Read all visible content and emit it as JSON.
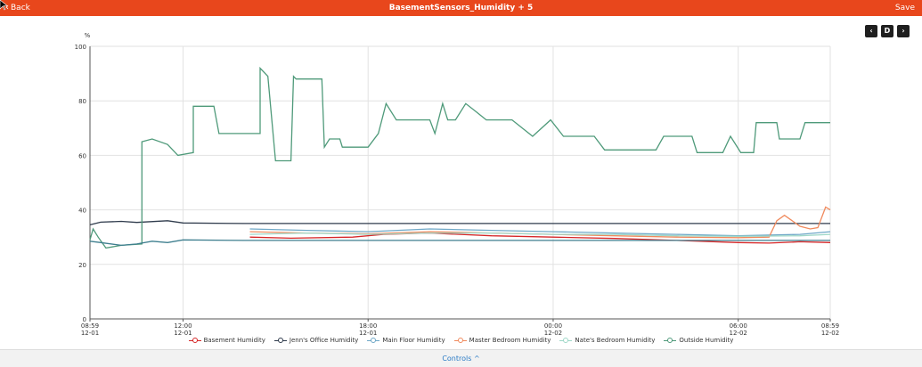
{
  "header": {
    "back_label": "Back",
    "title": "BasementSensors_Humidity + 5",
    "save_label": "Save"
  },
  "controls": {
    "prev": "‹",
    "period": "D",
    "next": "›"
  },
  "footer": {
    "controls_label": "Controls ^"
  },
  "chart_data": {
    "type": "line",
    "ylabel": "%",
    "ylim": [
      0,
      100
    ],
    "yticks": [
      "0",
      "20",
      "40",
      "60",
      "80",
      "100"
    ],
    "xlim": [
      "2023-12-01T08:59",
      "2023-12-02T08:59"
    ],
    "xticks": [
      {
        "t": "2023-12-01T08:59",
        "label1": "08:59",
        "label2": "12-01"
      },
      {
        "t": "2023-12-01T12:00",
        "label1": "12:00",
        "label2": "12-01"
      },
      {
        "t": "2023-12-01T18:00",
        "label1": "18:00",
        "label2": "12-01"
      },
      {
        "t": "2023-12-02T00:00",
        "label1": "00:00",
        "label2": "12-02"
      },
      {
        "t": "2023-12-02T06:00",
        "label1": "06:00",
        "label2": "12-02"
      },
      {
        "t": "2023-12-02T08:59",
        "label1": "08:59",
        "label2": "12-02"
      }
    ],
    "grid": true,
    "legend_position": "bottom",
    "series": [
      {
        "name": "Basement Humidity",
        "color": "#d62728",
        "points": [
          [
            "2023-12-01T14:10",
            30
          ],
          [
            "2023-12-01T15:30",
            29.6
          ],
          [
            "2023-12-01T17:30",
            30
          ],
          [
            "2023-12-01T18:30",
            31
          ],
          [
            "2023-12-01T20:00",
            31.5
          ],
          [
            "2023-12-01T22:00",
            30.5
          ],
          [
            "2023-12-02T00:00",
            30
          ],
          [
            "2023-12-02T02:00",
            29.5
          ],
          [
            "2023-12-02T04:00",
            28.8
          ],
          [
            "2023-12-02T06:00",
            28
          ],
          [
            "2023-12-02T07:00",
            27.8
          ],
          [
            "2023-12-02T08:00",
            28.3
          ],
          [
            "2023-12-02T08:59",
            28
          ]
        ]
      },
      {
        "name": "Jenn's Office Humidity",
        "color": "#2f3b4c",
        "points": [
          [
            "2023-12-01T08:59",
            34.5
          ],
          [
            "2023-12-01T09:20",
            35.5
          ],
          [
            "2023-12-01T10:00",
            35.8
          ],
          [
            "2023-12-01T10:30",
            35.4
          ],
          [
            "2023-12-01T11:30",
            36
          ],
          [
            "2023-12-01T12:00",
            35.2
          ],
          [
            "2023-12-01T14:00",
            35
          ],
          [
            "2023-12-01T18:00",
            35
          ],
          [
            "2023-12-02T00:00",
            35
          ],
          [
            "2023-12-02T06:00",
            35
          ],
          [
            "2023-12-02T08:59",
            35
          ]
        ]
      },
      {
        "name": "Main Floor Humidity",
        "color": "#6fa8c7",
        "points": [
          [
            "2023-12-01T14:10",
            33
          ],
          [
            "2023-12-01T16:00",
            32.5
          ],
          [
            "2023-12-01T18:00",
            32
          ],
          [
            "2023-12-01T20:00",
            33
          ],
          [
            "2023-12-01T22:00",
            32.5
          ],
          [
            "2023-12-02T00:00",
            32
          ],
          [
            "2023-12-02T02:00",
            31.5
          ],
          [
            "2023-12-02T04:00",
            31
          ],
          [
            "2023-12-02T06:00",
            30.5
          ],
          [
            "2023-12-02T08:00",
            31
          ],
          [
            "2023-12-02T08:59",
            32
          ]
        ]
      },
      {
        "name": "Master Bedroom Humidity",
        "color": "#f08a5d",
        "points": [
          [
            "2023-12-01T14:10",
            32
          ],
          [
            "2023-12-01T16:00",
            31.5
          ],
          [
            "2023-12-01T18:00",
            31.2
          ],
          [
            "2023-12-01T20:00",
            32
          ],
          [
            "2023-12-01T22:00",
            31.5
          ],
          [
            "2023-12-02T00:00",
            31
          ],
          [
            "2023-12-02T02:00",
            30.5
          ],
          [
            "2023-12-02T04:00",
            30
          ],
          [
            "2023-12-02T06:00",
            29.8
          ],
          [
            "2023-12-02T07:00",
            30
          ],
          [
            "2023-12-02T07:15",
            36
          ],
          [
            "2023-12-02T07:30",
            38
          ],
          [
            "2023-12-02T08:00",
            34
          ],
          [
            "2023-12-02T08:20",
            33
          ],
          [
            "2023-12-02T08:35",
            33.5
          ],
          [
            "2023-12-02T08:50",
            41
          ],
          [
            "2023-12-02T08:59",
            40
          ]
        ]
      },
      {
        "name": "Nate's Bedroom Humidity",
        "color": "#9fd8c8",
        "points": [
          [
            "2023-12-01T14:10",
            31
          ],
          [
            "2023-12-01T16:00",
            31.5
          ],
          [
            "2023-12-01T18:00",
            31
          ],
          [
            "2023-12-01T20:00",
            31.5
          ],
          [
            "2023-12-01T22:00",
            31.5
          ],
          [
            "2023-12-02T00:00",
            31
          ],
          [
            "2023-12-02T02:00",
            31
          ],
          [
            "2023-12-02T04:00",
            30.5
          ],
          [
            "2023-12-02T06:00",
            30.3
          ],
          [
            "2023-12-02T08:00",
            30.5
          ],
          [
            "2023-12-02T08:59",
            31
          ]
        ]
      },
      {
        "name": "Outside Humidity",
        "color": "#4f9a7a",
        "points": [
          [
            "2023-12-01T08:59",
            29
          ],
          [
            "2023-12-01T09:05",
            33
          ],
          [
            "2023-12-01T09:15",
            30
          ],
          [
            "2023-12-01T09:30",
            26
          ],
          [
            "2023-12-01T10:00",
            27
          ],
          [
            "2023-12-01T10:40",
            27.5
          ],
          [
            "2023-12-01T10:40",
            65
          ],
          [
            "2023-12-01T11:00",
            66
          ],
          [
            "2023-12-01T11:30",
            64
          ],
          [
            "2023-12-01T11:50",
            60
          ],
          [
            "2023-12-01T12:20",
            61
          ],
          [
            "2023-12-01T12:20",
            78
          ],
          [
            "2023-12-01T13:00",
            78
          ],
          [
            "2023-12-01T13:10",
            68
          ],
          [
            "2023-12-01T14:30",
            68
          ],
          [
            "2023-12-01T14:30",
            92
          ],
          [
            "2023-12-01T14:45",
            89
          ],
          [
            "2023-12-01T15:00",
            58
          ],
          [
            "2023-12-01T15:30",
            58
          ],
          [
            "2023-12-01T15:35",
            89
          ],
          [
            "2023-12-01T15:40",
            88
          ],
          [
            "2023-12-01T16:30",
            88
          ],
          [
            "2023-12-01T16:35",
            63
          ],
          [
            "2023-12-01T16:45",
            66
          ],
          [
            "2023-12-01T17:05",
            66
          ],
          [
            "2023-12-01T17:10",
            63
          ],
          [
            "2023-12-01T18:00",
            63
          ],
          [
            "2023-12-01T18:20",
            68
          ],
          [
            "2023-12-01T18:35",
            79
          ],
          [
            "2023-12-01T18:55",
            73
          ],
          [
            "2023-12-01T20:00",
            73
          ],
          [
            "2023-12-01T20:10",
            68
          ],
          [
            "2023-12-01T20:25",
            79
          ],
          [
            "2023-12-01T20:35",
            73
          ],
          [
            "2023-12-01T20:50",
            73
          ],
          [
            "2023-12-01T21:10",
            79
          ],
          [
            "2023-12-01T21:30",
            76
          ],
          [
            "2023-12-01T21:50",
            73
          ],
          [
            "2023-12-01T22:40",
            73
          ],
          [
            "2023-12-01T23:20",
            67
          ],
          [
            "2023-12-01T23:55",
            73
          ],
          [
            "2023-12-02T00:20",
            67
          ],
          [
            "2023-12-02T01:20",
            67
          ],
          [
            "2023-12-02T01:40",
            62
          ],
          [
            "2023-12-02T03:20",
            62
          ],
          [
            "2023-12-02T03:35",
            67
          ],
          [
            "2023-12-02T04:30",
            67
          ],
          [
            "2023-12-02T04:40",
            61
          ],
          [
            "2023-12-02T05:30",
            61
          ],
          [
            "2023-12-02T05:45",
            67
          ],
          [
            "2023-12-02T06:05",
            61
          ],
          [
            "2023-12-02T06:30",
            61
          ],
          [
            "2023-12-02T06:35",
            72
          ],
          [
            "2023-12-02T07:15",
            72
          ],
          [
            "2023-12-02T07:20",
            66
          ],
          [
            "2023-12-02T08:00",
            66
          ],
          [
            "2023-12-02T08:10",
            72
          ],
          [
            "2023-12-02T08:59",
            72
          ]
        ]
      },
      {
        "name": "",
        "color": "#3f7f8f",
        "points": [
          [
            "2023-12-01T08:59",
            28.5
          ],
          [
            "2023-12-01T09:20",
            28
          ],
          [
            "2023-12-01T10:00",
            27
          ],
          [
            "2023-12-01T10:30",
            27.5
          ],
          [
            "2023-12-01T11:00",
            28.5
          ],
          [
            "2023-12-01T11:30",
            28
          ],
          [
            "2023-12-01T12:00",
            29
          ],
          [
            "2023-12-01T14:00",
            28.8
          ],
          [
            "2023-12-01T18:00",
            28.8
          ],
          [
            "2023-12-02T00:00",
            28.8
          ],
          [
            "2023-12-02T06:00",
            28.8
          ],
          [
            "2023-12-02T08:59",
            28.8
          ]
        ]
      }
    ]
  }
}
